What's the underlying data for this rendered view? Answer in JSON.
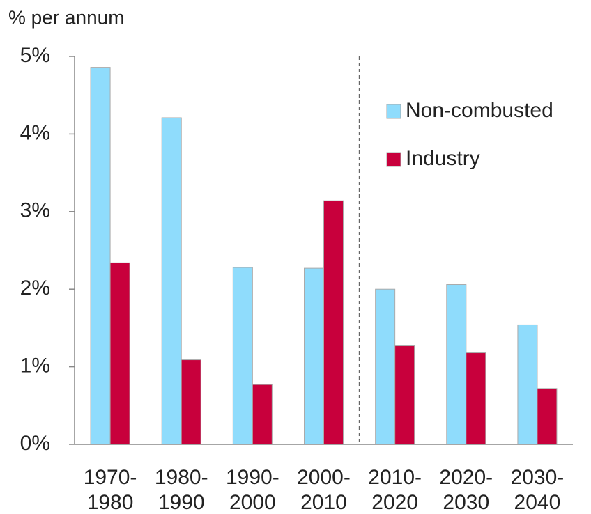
{
  "chart_data": {
    "type": "bar",
    "ylabel": "% per annum",
    "categories": [
      "1970-1980",
      "1980-1990",
      "1990-2000",
      "2000-2010",
      "2010-2020",
      "2020-2030",
      "2030-2040"
    ],
    "series": [
      {
        "name": "Non-combusted",
        "color": "#8fdcfc",
        "values": [
          4.86,
          4.21,
          2.28,
          2.27,
          2.0,
          2.06,
          1.54
        ]
      },
      {
        "name": "Industry",
        "color": "#c8003c",
        "values": [
          2.34,
          1.09,
          0.77,
          3.14,
          1.27,
          1.18,
          0.72
        ]
      }
    ],
    "ylim": [
      0,
      5
    ],
    "yticks": [
      {
        "value": 0,
        "label": "0%"
      },
      {
        "value": 1,
        "label": "1%"
      },
      {
        "value": 2,
        "label": "2%"
      },
      {
        "value": 3,
        "label": "3%"
      },
      {
        "value": 4,
        "label": "4%"
      },
      {
        "value": 5,
        "label": "5%"
      }
    ],
    "grid": false,
    "legend": "upper right"
  }
}
